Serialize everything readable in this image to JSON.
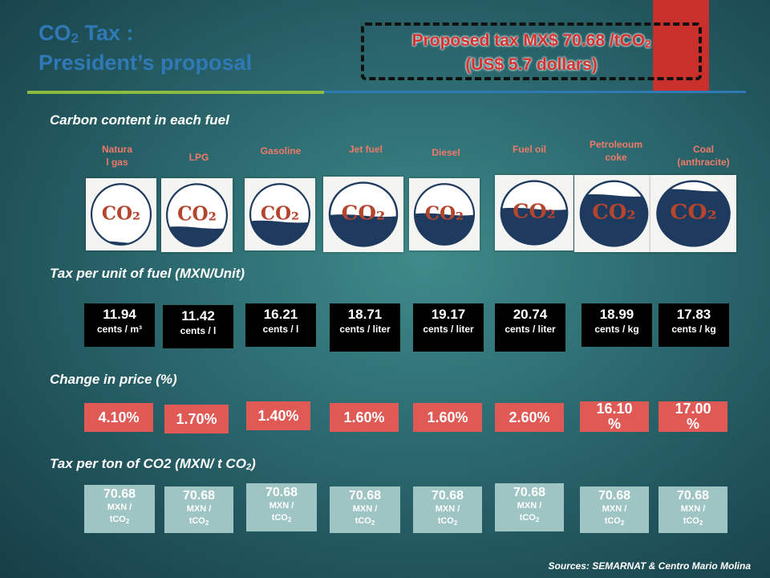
{
  "title": {
    "line1_prefix": "CO",
    "line1_sub": "2",
    "line1_suffix": " Tax :",
    "line2": "President’s proposal"
  },
  "proposal": {
    "line1_prefix": "Proposed tax MX$ 70.68 /tCO",
    "line1_sub": "2",
    "line2": "(US$ 5.7 dollars)"
  },
  "sections": {
    "carbon_content": "Carbon content in each fuel",
    "tax_per_unit": "Tax per unit of fuel (MXN/Unit)",
    "change_in_price": "Change in price (%)",
    "tax_per_ton_prefix": "Tax per ton of CO2 (MXN/ t CO",
    "tax_per_ton_sub": "2",
    "tax_per_ton_suffix": ")"
  },
  "co2_label": "CO₂",
  "fuels": [
    {
      "name": "Natura\nl gas",
      "carbon_fill": 0.04,
      "tax_value": "11.94",
      "tax_unit": "cents / m³",
      "change": "4.10%",
      "ton_value": "70.68",
      "ton_unit": "MXN /",
      "ton_unit2": "tCO"
    },
    {
      "name": "LPG",
      "carbon_fill": 0.3,
      "tax_value": "11.42",
      "tax_unit": "cents / l",
      "change": "1.70%",
      "ton_value": "70.68",
      "ton_unit": "MXN /",
      "ton_unit2": "tCO"
    },
    {
      "name": "Gasoline",
      "carbon_fill": 0.38,
      "tax_value": "16.21",
      "tax_unit": "cents / l",
      "change": "1.40%",
      "ton_value": "70.68",
      "ton_unit": "MXN /",
      "ton_unit2": "tCO"
    },
    {
      "name": "Jet fuel",
      "carbon_fill": 0.48,
      "tax_value": "18.71",
      "tax_unit": "cents / liter",
      "change": "1.60%",
      "ton_value": "70.68",
      "ton_unit": "MXN /",
      "ton_unit2": "tCO"
    },
    {
      "name": "Diesel",
      "carbon_fill": 0.5,
      "tax_value": "19.17",
      "tax_unit": "cents / liter",
      "change": "1.60%",
      "ton_value": "70.68",
      "ton_unit": "MXN /",
      "ton_unit2": "tCO"
    },
    {
      "name": "Fuel oil",
      "carbon_fill": 0.56,
      "tax_value": "20.74",
      "tax_unit": "cents / liter",
      "change": "2.60%",
      "ton_value": "70.68",
      "ton_unit": "MXN /",
      "ton_unit2": "tCO"
    },
    {
      "name": "Petroleoum\ncoke",
      "carbon_fill": 0.78,
      "tax_value": "18.99",
      "tax_unit": "cents / kg",
      "change": "16.10\n%",
      "ton_value": "70.68",
      "ton_unit": "MXN /",
      "ton_unit2": "tCO"
    },
    {
      "name": "Coal\n(anthracite)",
      "carbon_fill": 0.86,
      "tax_value": "17.83",
      "tax_unit": "cents / kg",
      "change": "17.00\n%",
      "ton_value": "70.68",
      "ton_unit": "MXN /",
      "ton_unit2": "tCO"
    }
  ],
  "ton_sub": "2",
  "sources": "Sources: SEMARNAT & Centro Mario Molina",
  "colors": {
    "title": "#2f79b7",
    "proposal_text": "#d4322f",
    "fuel_name": "#ef7a6a",
    "unit_box": "#000000",
    "change_box": "#e05a55",
    "ton_box": "#9fc4c4",
    "carbon_fill": "#1f3a5f",
    "co2_text": "#b5452d"
  }
}
